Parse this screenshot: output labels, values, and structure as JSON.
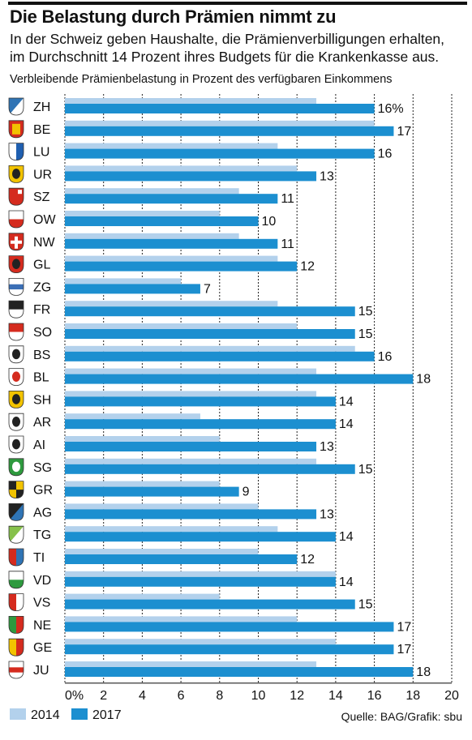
{
  "header": {
    "title": "Die Belastung durch Prämien nimmt zu",
    "subtitle_line1": "In der Schweiz geben Haushalte, die Prämienverbilligungen erhalten,",
    "subtitle_line2": "im Durchschnitt 14 Prozent ihres Budgets für die Krankenkasse aus.",
    "unit_label": "Verbleibende Prämienbelastung in Prozent des verfügbaren Einkommens"
  },
  "footer": {
    "source": "Quelle: BAG/Grafik: sbu"
  },
  "colors": {
    "series_2014": "#b3d1ec",
    "series_2017": "#1c8fd0",
    "gridline": "#222222",
    "text": "#111111"
  },
  "chart_data": {
    "type": "bar",
    "orientation": "horizontal",
    "categories": [
      "ZH",
      "BE",
      "LU",
      "UR",
      "SZ",
      "OW",
      "NW",
      "GL",
      "ZG",
      "FR",
      "SO",
      "BS",
      "BL",
      "SH",
      "AR",
      "AI",
      "SG",
      "GR",
      "AG",
      "TG",
      "TI",
      "VD",
      "VS",
      "NE",
      "GE",
      "JU"
    ],
    "series": [
      {
        "name": "2014",
        "values": [
          13,
          16,
          11,
          12,
          9,
          8,
          9,
          11,
          6,
          11,
          12,
          15,
          13,
          13,
          7,
          8,
          13,
          8,
          10,
          11,
          10,
          14,
          8,
          12,
          14,
          13
        ]
      },
      {
        "name": "2017",
        "values": [
          16,
          17,
          16,
          13,
          11,
          10,
          11,
          12,
          7,
          15,
          15,
          16,
          18,
          14,
          14,
          13,
          15,
          9,
          13,
          14,
          12,
          14,
          15,
          17,
          17,
          18
        ]
      }
    ],
    "value_labels": [
      "16%",
      "17",
      "16",
      "13",
      "11",
      "10",
      "11",
      "12",
      "7",
      "15",
      "15",
      "16",
      "18",
      "14",
      "14",
      "13",
      "15",
      "9",
      "13",
      "14",
      "12",
      "14",
      "15",
      "17",
      "17",
      "18"
    ],
    "xlim": [
      0,
      20
    ],
    "x_ticks": [
      "0%",
      "2",
      "4",
      "6",
      "8",
      "10",
      "12",
      "14",
      "16",
      "18",
      "20"
    ],
    "grid": true,
    "legend_position": "bottom-left",
    "category_icons": [
      "zh-coat-of-arms-icon",
      "be-coat-of-arms-icon",
      "lu-coat-of-arms-icon",
      "ur-coat-of-arms-icon",
      "sz-coat-of-arms-icon",
      "ow-coat-of-arms-icon",
      "nw-coat-of-arms-icon",
      "gl-coat-of-arms-icon",
      "zg-coat-of-arms-icon",
      "fr-coat-of-arms-icon",
      "so-coat-of-arms-icon",
      "bs-coat-of-arms-icon",
      "bl-coat-of-arms-icon",
      "sh-coat-of-arms-icon",
      "ar-coat-of-arms-icon",
      "ai-coat-of-arms-icon",
      "sg-coat-of-arms-icon",
      "gr-coat-of-arms-icon",
      "ag-coat-of-arms-icon",
      "tg-coat-of-arms-icon",
      "ti-coat-of-arms-icon",
      "vd-coat-of-arms-icon",
      "vs-coat-of-arms-icon",
      "ne-coat-of-arms-icon",
      "ge-coat-of-arms-icon",
      "ju-coat-of-arms-icon"
    ]
  }
}
